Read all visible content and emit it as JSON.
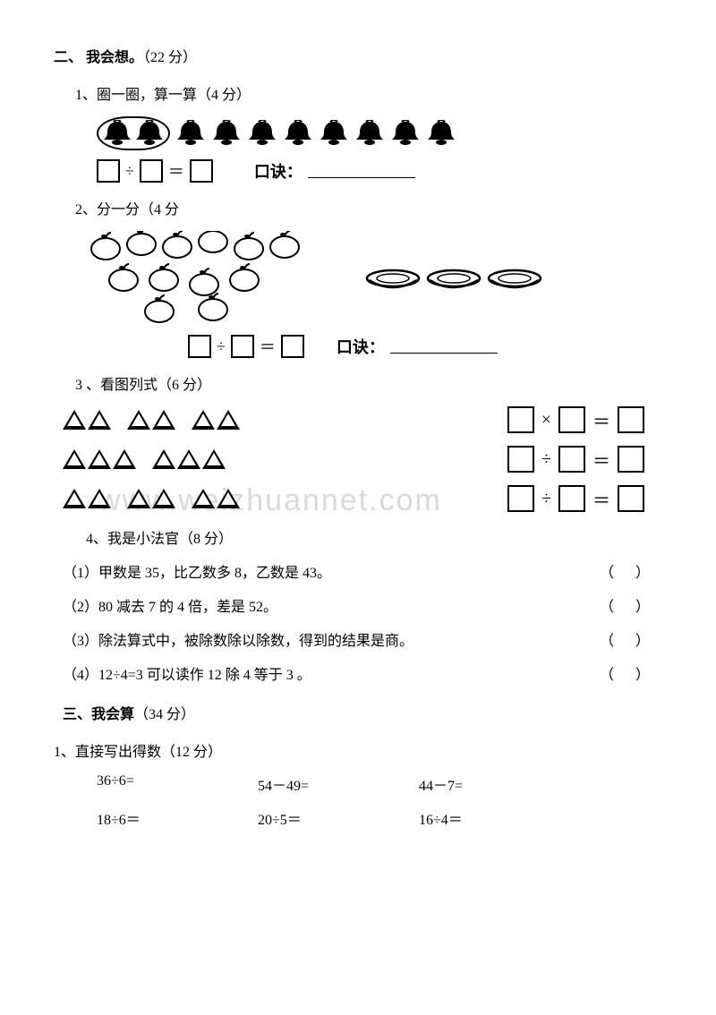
{
  "watermark": "www.weizhuannet.com",
  "section2": {
    "title_prefix": "二、",
    "title_bold": "我会想。",
    "title_suffix": "（22 分）",
    "q1": {
      "label": "1、圈一圈，算一算（4 分）",
      "op": "÷",
      "eq": "＝",
      "koujue": "口诀：",
      "bells_count": 10
    },
    "q2": {
      "label": "2、分一分（4 分",
      "op": "÷",
      "eq": "＝",
      "koujue": "口诀：",
      "apples": 12,
      "plates": 3
    },
    "q3": {
      "label": "3 、看图列式（6 分）",
      "rows": [
        {
          "groups": [
            2,
            2,
            2
          ],
          "op": "×",
          "eq": "＝"
        },
        {
          "groups": [
            3,
            3
          ],
          "op": "÷",
          "eq": "＝"
        },
        {
          "groups": [
            2,
            2,
            2
          ],
          "op": "÷",
          "eq": "＝"
        }
      ]
    },
    "q4": {
      "label": "4、我是小法官（8 分）",
      "items": [
        "（1）甲数是 35，比乙数多 8，乙数是 43。",
        "（2）80 减去 7 的 4 倍，差是 52。",
        "（3）除法算式中，被除数除以除数，得到的结果是商。",
        "（4）12÷4=3 可以读作 12 除 4 等于 3 。"
      ],
      "paren": "（　）"
    }
  },
  "section3": {
    "title_prefix": "三、",
    "title_bold": "我会算",
    "title_suffix": "（34 分）",
    "q1": {
      "label": "1、直接写出得数（12 分）",
      "rows": [
        [
          "36÷6=",
          "54－49=",
          "44－7="
        ],
        [
          "18÷6＝",
          "20÷5＝",
          "16÷4＝"
        ]
      ]
    }
  }
}
